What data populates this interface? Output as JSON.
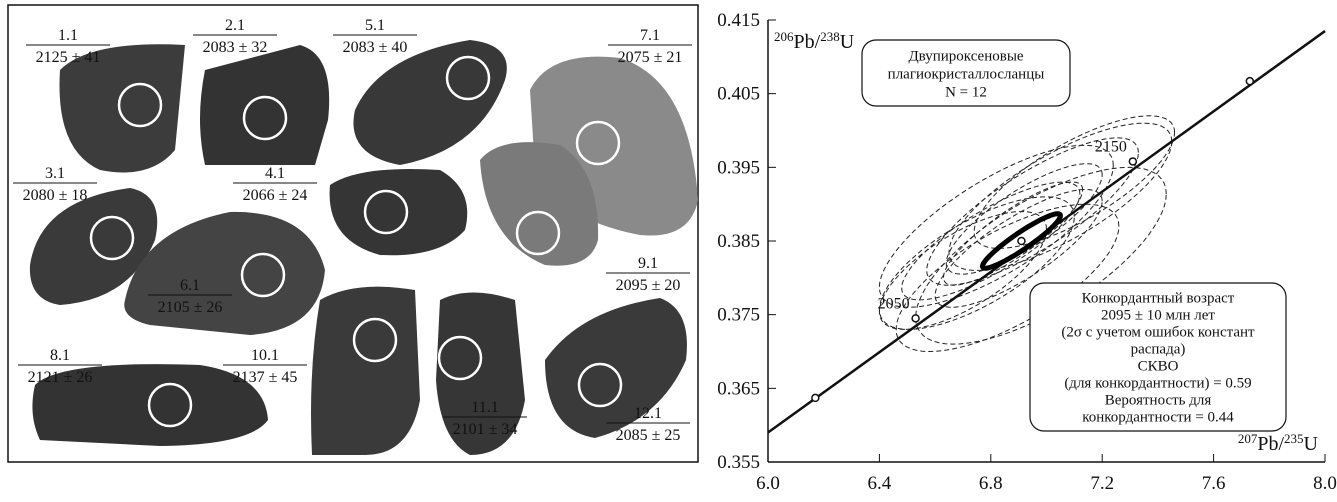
{
  "grains": [
    {
      "spot": "1.1",
      "age": "2125 ± 41"
    },
    {
      "spot": "2.1",
      "age": "2083 ± 32"
    },
    {
      "spot": "5.1",
      "age": "2083 ± 40"
    },
    {
      "spot": "7.1",
      "age": "2075 ± 21"
    },
    {
      "spot": "3.1",
      "age": "2080 ± 18"
    },
    {
      "spot": "4.1",
      "age": "2066 ± 24"
    },
    {
      "spot": "6.1",
      "age": "2105 ± 26"
    },
    {
      "spot": "9.1",
      "age": "2095 ± 20"
    },
    {
      "spot": "8.1",
      "age": "2121 ± 26"
    },
    {
      "spot": "10.1",
      "age": "2137 ± 45"
    },
    {
      "spot": "11.1",
      "age": "2101 ± 34"
    },
    {
      "spot": "12.1",
      "age": "2085 ± 25"
    }
  ],
  "chart_data": {
    "type": "concordia",
    "x_label": [
      "207",
      "Pb/",
      "235",
      "U"
    ],
    "y_label": [
      "206",
      "Pb/",
      "238",
      "U"
    ],
    "xlim": [
      6.0,
      8.0
    ],
    "ylim": [
      0.355,
      0.415
    ],
    "xticks": [
      {
        "value": 6.0,
        "label": "6.0"
      },
      {
        "value": 6.4,
        "label": "6.4"
      },
      {
        "value": 6.8,
        "label": "6.8"
      },
      {
        "value": 7.2,
        "label": "7.2"
      },
      {
        "value": 7.6,
        "label": "7.6"
      },
      {
        "value": 8.0,
        "label": "8.0"
      }
    ],
    "yticks": [
      0.355,
      0.365,
      0.375,
      0.385,
      0.395,
      0.405,
      0.415
    ],
    "concordia": {
      "x": [
        6.0,
        8.0
      ],
      "y": [
        0.359,
        0.4135
      ]
    },
    "age_markers": {
      "x": [
        6.17,
        6.53,
        6.91,
        7.31,
        7.73
      ],
      "y": [
        0.3637,
        0.3745,
        0.385,
        0.3958,
        0.4067
      ],
      "labels": [
        null,
        2050,
        null,
        2150,
        null
      ]
    },
    "ellipses": {
      "x": [
        6.82,
        6.95,
        6.75,
        6.9,
        7.05,
        6.7,
        6.88,
        6.98,
        6.8,
        7.1,
        6.86,
        6.92
      ],
      "y": [
        0.387,
        0.389,
        0.382,
        0.384,
        0.391,
        0.381,
        0.386,
        0.383,
        0.385,
        0.393,
        0.38,
        0.388
      ],
      "x_err": [
        0.42,
        0.38,
        0.35,
        0.3,
        0.4,
        0.3,
        0.25,
        0.45,
        0.32,
        0.36,
        0.4,
        0.28
      ],
      "y_err": [
        0.011,
        0.01,
        0.009,
        0.008,
        0.01,
        0.008,
        0.007,
        0.012,
        0.008,
        0.009,
        0.01,
        0.0075
      ],
      "rho": [
        0.75,
        0.8,
        0.7,
        0.8,
        0.75,
        0.7,
        0.85,
        0.7,
        0.8,
        0.75,
        0.7,
        0.8
      ]
    },
    "concordant_ellipse": {
      "x": 6.91,
      "y": 0.385,
      "x_err": 0.14,
      "y_err": 0.0037,
      "rho": 0.93
    },
    "sample_box": {
      "lines": [
        "Двупироксеновые",
        "плагиокристаллосланцы",
        "N = 12"
      ]
    },
    "result_box": {
      "lines": [
        "Конкордантный возраст",
        "2095 ± 10 млн лет",
        "(2σ с учетом ошибок констант",
        "распада)",
        "СКВО",
        "(для конкордантности) = 0.59",
        "Вероятность для",
        "конкордантности = 0.44"
      ]
    }
  }
}
